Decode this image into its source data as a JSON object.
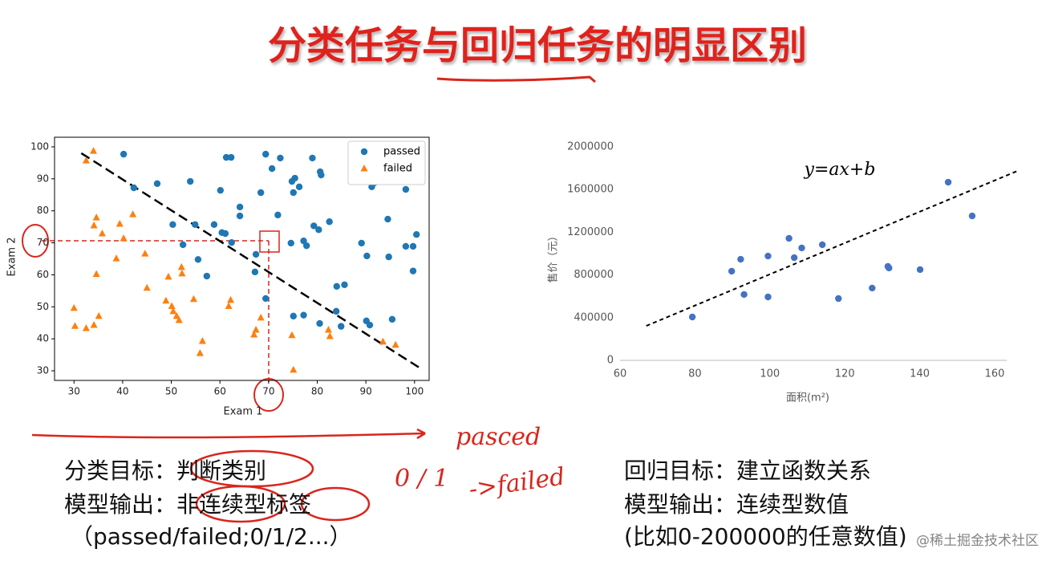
{
  "title": "分类任务与回归任务的明显区别",
  "chart_data": [
    {
      "type": "scatter",
      "xlabel": "Exam 1",
      "ylabel": "Exam 2",
      "xlim": [
        26,
        103
      ],
      "ylim": [
        27,
        103
      ],
      "xticks": [
        30,
        40,
        50,
        60,
        70,
        80,
        90,
        100
      ],
      "yticks": [
        30,
        40,
        50,
        60,
        70,
        80,
        90,
        100
      ],
      "legend": "upper right",
      "frame": true,
      "series": [
        {
          "name": "passed",
          "color": "#1f77b4",
          "marker": "circle",
          "x": [
            40.2,
            42.3,
            47.1,
            53.9,
            60.1,
            61.3,
            62.3,
            69.4,
            72.4,
            70.7,
            75.4,
            74.8,
            76.3,
            75.1,
            79.0,
            80.6,
            80.8,
            68.4,
            64.1,
            64.1,
            71.9,
            50.3,
            54.9,
            58.8,
            60.4,
            61.1,
            62.4,
            52.4,
            55.5,
            57.3,
            67.4,
            67.2,
            69.4,
            74.6,
            77.2,
            77.8,
            79.3,
            80.3,
            82.5,
            89.1,
            90.2,
            91.2,
            91.7,
            94.5,
            94.7,
            98.2,
            98.2,
            99.7,
            100.4,
            99.7,
            75.1,
            77.2,
            80.5,
            83.9,
            84.0,
            85.6,
            84.9,
            90.1,
            90.8,
            95.4
          ],
          "y": [
            97.7,
            87.2,
            88.5,
            89.2,
            86.4,
            96.7,
            96.7,
            97.7,
            96.5,
            93.2,
            90.2,
            89.2,
            87.5,
            85.7,
            96.5,
            92.2,
            91.2,
            85.7,
            81.2,
            78.4,
            78.7,
            75.7,
            75.7,
            75.7,
            73.2,
            72.9,
            70.1,
            69.4,
            64.8,
            59.6,
            66.4,
            60.9,
            52.6,
            69.9,
            70.6,
            69.1,
            75.3,
            74.1,
            76.6,
            69.9,
            65.9,
            87.5,
            88.7,
            77.4,
            65.6,
            86.7,
            68.9,
            68.9,
            72.6,
            61.2,
            47.1,
            47.4,
            44.8,
            48.6,
            56.4,
            56.9,
            43.9,
            45.6,
            44.3,
            46.1
          ]
        },
        {
          "name": "failed",
          "color": "#ff7f0e",
          "marker": "triangle",
          "x": [
            34.0,
            32.5,
            34.6,
            34.1,
            35.8,
            39.4,
            42.1,
            40.2,
            38.7,
            44.6,
            34.6,
            45.0,
            49.4,
            52.1,
            52.2,
            30.0,
            30.2,
            32.5,
            34.1,
            35.1,
            48.9,
            50.1,
            50.4,
            51.1,
            51.6,
            54.6,
            55.9,
            56.4,
            62.2,
            61.8,
            67.4,
            67.0,
            68.4,
            74.8,
            75.1,
            82.3,
            82.6,
            93.5,
            96.1
          ],
          "y": [
            98.7,
            95.7,
            77.9,
            75.4,
            72.9,
            75.9,
            78.9,
            71.4,
            65.1,
            66.6,
            60.2,
            55.9,
            59.4,
            62.4,
            60.4,
            49.6,
            44.0,
            43.3,
            44.3,
            47.1,
            51.9,
            50.2,
            48.6,
            47.1,
            45.8,
            52.4,
            35.5,
            39.3,
            52.1,
            50.2,
            42.8,
            41.3,
            46.6,
            41.1,
            30.3,
            42.8,
            40.8,
            39.1,
            38.1
          ]
        }
      ],
      "lines": [
        {
          "x": [
            31.5,
            101.5
          ],
          "y": [
            98,
            30.5
          ],
          "color": "#000000",
          "dashed": true
        }
      ]
    },
    {
      "type": "scatter",
      "xlabel": "面积(m²)",
      "ylabel": "售价（元）",
      "annotation": "y=ax+b",
      "xlim": [
        60,
        160
      ],
      "ylim": [
        0,
        2000000
      ],
      "xticks": [
        60,
        80,
        100,
        120,
        140,
        160
      ],
      "yticks": [
        0,
        400000,
        800000,
        1200000,
        1600000,
        2000000
      ],
      "frame": false,
      "color": "#4472c4",
      "x": [
        79.3,
        89.8,
        92.2,
        93.1,
        99.5,
        99.5,
        105.1,
        106.5,
        108.5,
        114.0,
        118.3,
        127.3,
        131.5,
        131.8,
        140.1,
        147.6,
        154.0
      ],
      "y": [
        406000,
        835000,
        947000,
        617000,
        977000,
        594000,
        1143000,
        962000,
        1053000,
        1083000,
        579000,
        677000,
        880000,
        865000,
        850000,
        1669000,
        1353000
      ],
      "lines": [
        {
          "x": [
            67,
            166.6
          ],
          "y": [
            323000,
            1782000
          ],
          "color": "#000000",
          "dashed": true
        }
      ]
    }
  ],
  "left_text": [
    "分类目标：判断类别",
    "模型输出：非连续型标签",
    "（passed/failed;0/1/2...）"
  ],
  "right_text": [
    "回归目标：建立函数关系",
    "模型输出：连续型数值",
    "(比如0-200000的任意数值)"
  ],
  "handwriting": [
    "pasced",
    "0 / 1",
    "->failed"
  ],
  "watermark": "@稀土掘金技术社区"
}
